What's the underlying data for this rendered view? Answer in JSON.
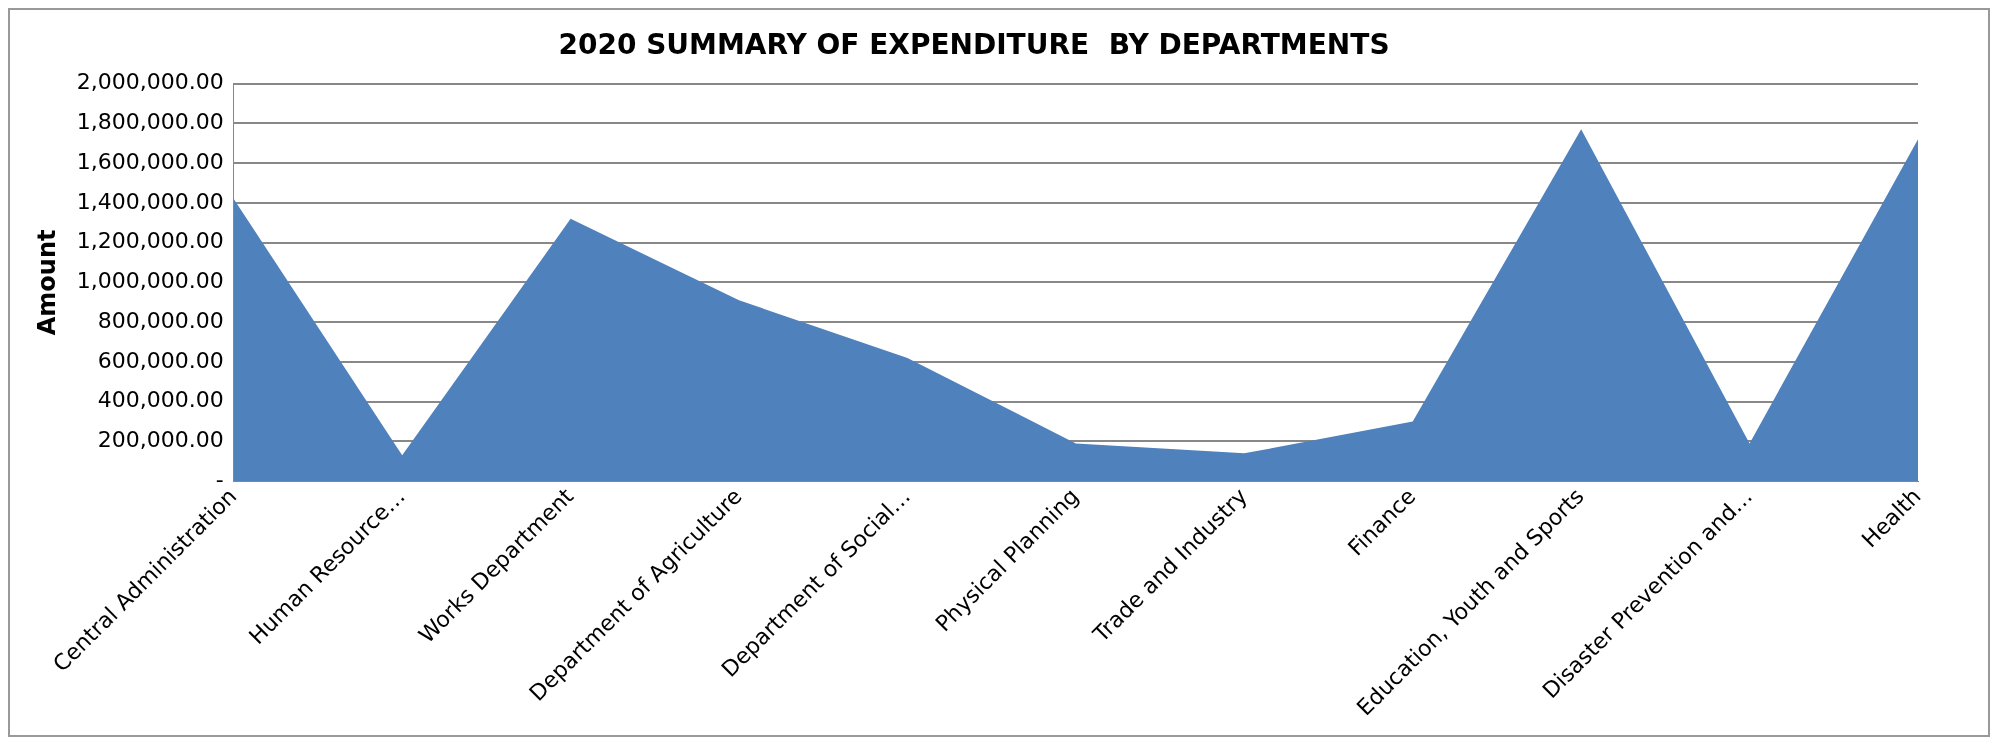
{
  "chart_data": {
    "type": "area",
    "title": "2020 SUMMARY OF EXPENDITURE  BY DEPARTMENTS",
    "ylabel": "Amount",
    "categories": [
      "Central Administration",
      "Human Resource…",
      "Works Department",
      "Department of Agriculture",
      "Department of Social…",
      "Physical Planning",
      "Trade and Industry",
      "Finance",
      "Education, Youth and Sports",
      "Disaster Prevention and…",
      "Health"
    ],
    "series": [
      {
        "color": "#4f81bd",
        "values": [
          1420000,
          130000,
          1320000,
          910000,
          620000,
          190000,
          140000,
          300000,
          1770000,
          190000,
          1720000
        ]
      }
    ],
    "ylim": [
      0,
      2000000
    ],
    "yticks": [
      {
        "value": 0,
        "label": "-"
      },
      {
        "value": 200000,
        "label": "200,000.00"
      },
      {
        "value": 400000,
        "label": "400,000.00"
      },
      {
        "value": 600000,
        "label": "600,000.00"
      },
      {
        "value": 800000,
        "label": "800,000.00"
      },
      {
        "value": 1000000,
        "label": "1,000,000.00"
      },
      {
        "value": 1200000,
        "label": "1,200,000.00"
      },
      {
        "value": 1400000,
        "label": "1,400,000.00"
      },
      {
        "value": 1600000,
        "label": "1,600,000.00"
      },
      {
        "value": 1800000,
        "label": "1,800,000.00"
      },
      {
        "value": 2000000,
        "label": "2,000,000.00"
      }
    ],
    "grid": "y"
  }
}
